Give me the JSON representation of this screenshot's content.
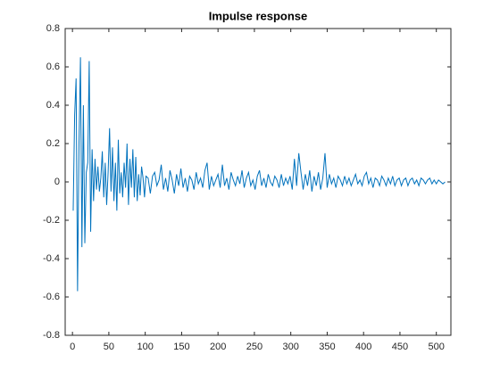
{
  "chart_data": {
    "type": "line",
    "title": "Impulse response",
    "x": [
      1,
      3,
      5,
      7,
      9,
      11,
      13,
      15,
      17,
      19,
      21,
      23,
      25,
      27,
      29,
      31,
      33,
      35,
      37,
      39,
      41,
      43,
      45,
      47,
      49,
      51,
      53,
      55,
      57,
      59,
      61,
      63,
      65,
      67,
      69,
      71,
      73,
      75,
      77,
      79,
      81,
      83,
      85,
      87,
      89,
      91,
      93,
      95,
      97,
      99,
      101,
      104,
      107,
      110,
      113,
      116,
      119,
      122,
      125,
      128,
      131,
      134,
      137,
      140,
      143,
      146,
      149,
      152,
      155,
      158,
      161,
      164,
      167,
      170,
      173,
      176,
      179,
      182,
      185,
      188,
      191,
      194,
      197,
      200,
      203,
      206,
      209,
      212,
      215,
      218,
      221,
      224,
      227,
      230,
      233,
      236,
      239,
      242,
      245,
      248,
      251,
      254,
      257,
      260,
      263,
      266,
      269,
      272,
      275,
      278,
      281,
      284,
      287,
      290,
      293,
      296,
      299,
      302,
      305,
      308,
      311,
      314,
      317,
      320,
      323,
      326,
      329,
      332,
      335,
      338,
      341,
      344,
      347,
      350,
      353,
      356,
      359,
      362,
      365,
      368,
      371,
      374,
      377,
      380,
      383,
      386,
      389,
      392,
      395,
      398,
      401,
      404,
      407,
      410,
      413,
      416,
      419,
      422,
      425,
      428,
      431,
      434,
      437,
      440,
      443,
      446,
      449,
      452,
      455,
      458,
      461,
      464,
      467,
      470,
      473,
      476,
      479,
      482,
      485,
      488,
      491,
      494,
      497,
      500,
      503,
      506,
      509,
      512
    ],
    "series": [
      {
        "name": "Impulse response",
        "color": "#0072bd",
        "values": [
          -0.15,
          0.35,
          0.54,
          -0.57,
          0.2,
          0.65,
          -0.34,
          0.4,
          -0.32,
          0.05,
          0.1,
          0.63,
          -0.26,
          0.17,
          -0.1,
          0.12,
          -0.04,
          0.08,
          -0.05,
          0.02,
          0.16,
          -0.08,
          0.1,
          -0.12,
          0.05,
          0.28,
          -0.05,
          0.18,
          -0.1,
          0.1,
          -0.15,
          0.22,
          -0.06,
          0.05,
          -0.08,
          0.1,
          -0.03,
          0.2,
          -0.12,
          0.12,
          -0.03,
          0.17,
          -0.08,
          0.13,
          -0.1,
          0.04,
          -0.07,
          0.08,
          0.02,
          -0.08,
          0.03,
          0.02,
          -0.06,
          0.03,
          0.05,
          -0.02,
          0.01,
          0.09,
          -0.04,
          0.02,
          -0.05,
          0.06,
          0.01,
          -0.06,
          0.04,
          -0.02,
          0.07,
          -0.03,
          0.02,
          -0.05,
          0.03,
          0.01,
          -0.04,
          0.05,
          -0.01,
          0.02,
          -0.03,
          0.06,
          0.1,
          -0.04,
          0.03,
          -0.02,
          0.01,
          0.04,
          -0.03,
          0.09,
          -0.02,
          0.02,
          -0.04,
          0.05,
          0.01,
          -0.02,
          0.03,
          -0.01,
          0.06,
          -0.03,
          0.02,
          0.05,
          -0.02,
          0.01,
          -0.04,
          0.03,
          0.06,
          -0.02,
          0.02,
          -0.03,
          0.04,
          0,
          -0.02,
          0.03,
          0.01,
          -0.03,
          0.04,
          -0.02,
          0.02,
          -0.01,
          0.03,
          -0.04,
          0.12,
          -0.02,
          0.15,
          0.05,
          -0.04,
          0.04,
          -0.02,
          0.06,
          -0.05,
          0.03,
          -0.02,
          0.05,
          -0.04,
          0.02,
          0.15,
          -0.03,
          0.04,
          -0.01,
          0.02,
          -0.03,
          0.03,
          0.01,
          -0.02,
          0.03,
          -0.01,
          0.02,
          -0.02,
          0.01,
          0.04,
          -0.01,
          0.01,
          -0.02,
          0.03,
          0.05,
          -0.01,
          0.02,
          -0.03,
          0.02,
          0.01,
          -0.02,
          0.03,
          0.01,
          -0.02,
          0.02,
          -0.01,
          0.03,
          -0.02,
          0.01,
          0.02,
          -0.02,
          0.01,
          0.02,
          -0.02,
          0.01,
          0.02,
          -0.01,
          0.01,
          -0.02,
          0.02,
          0.01,
          -0.01,
          0.01,
          0.02,
          -0.01,
          0.01,
          -0.01,
          0.01,
          0,
          -0.01,
          0
        ]
      }
    ],
    "xlim": [
      -10,
      520
    ],
    "xticks": [
      0,
      50,
      100,
      150,
      200,
      250,
      300,
      350,
      400,
      450,
      500
    ],
    "ylim": [
      -0.8,
      0.8
    ],
    "yticks": [
      -0.8,
      -0.6,
      -0.4,
      -0.2,
      0,
      0.2,
      0.4,
      0.6,
      0.8
    ]
  }
}
